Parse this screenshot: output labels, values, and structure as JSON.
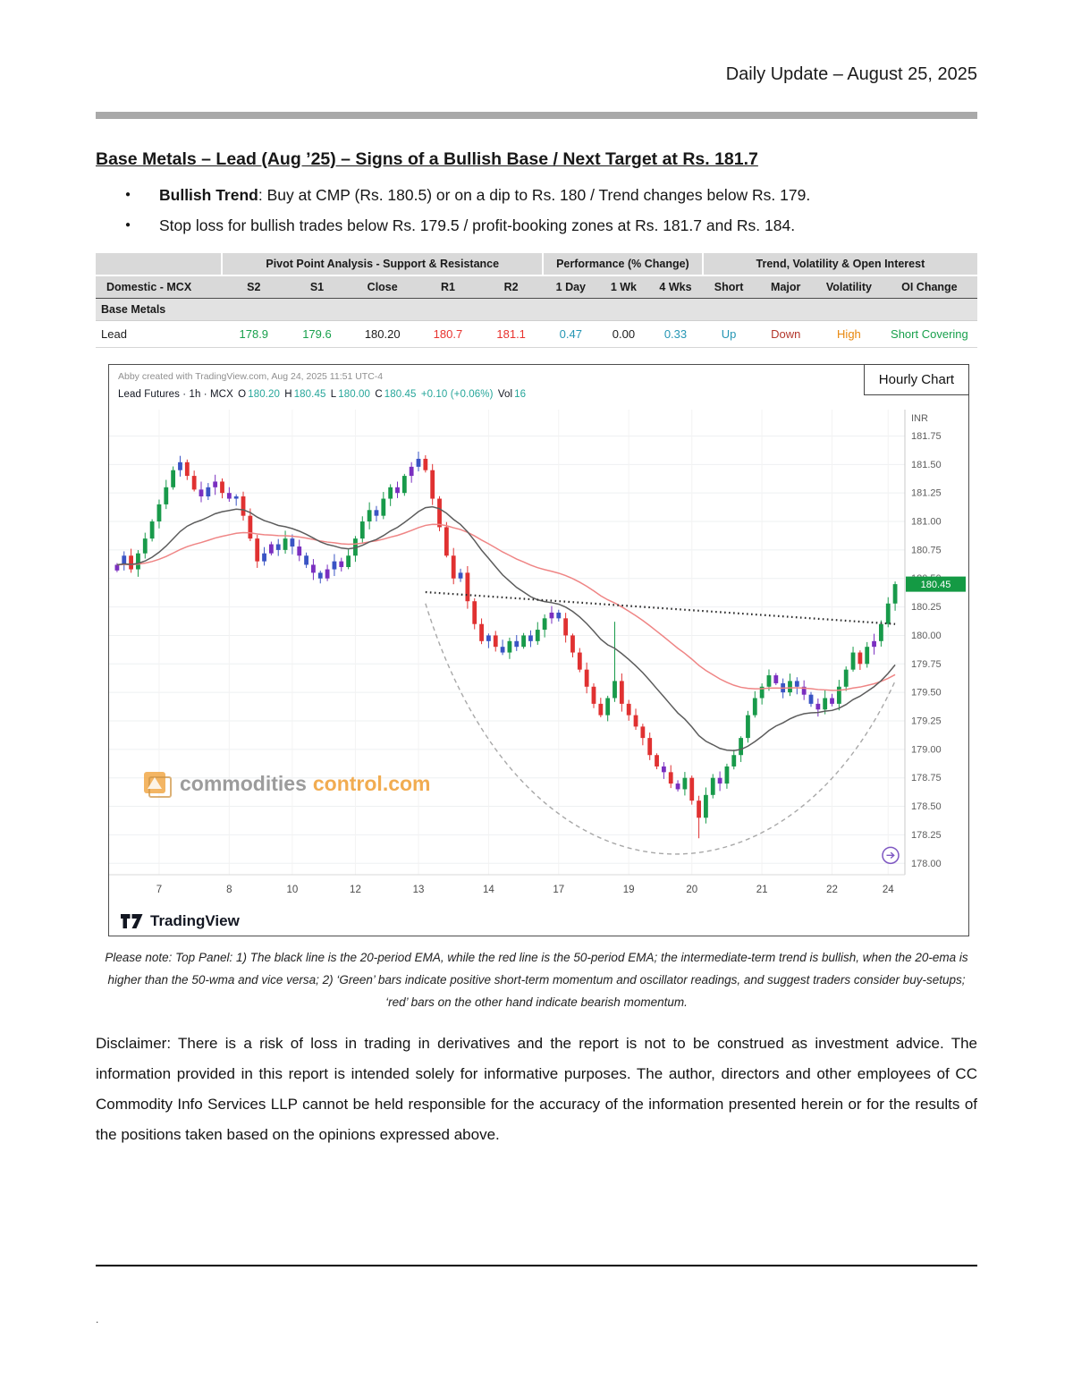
{
  "page": {
    "header_date": "Daily Update – August 25, 2025",
    "title": "Base Metals – Lead (Aug ’25) – Signs of a Bullish Base / Next Target at Rs. 181.7",
    "bullets": [
      {
        "bold": "Bullish Trend",
        "rest": ": Buy at CMP (Rs. 180.5) or on a dip to Rs. 180 / Trend changes below Rs. 179."
      },
      {
        "bold": "",
        "rest": "Stop loss for bullish trades below Rs. 179.5 / profit-booking zones at Rs. 181.7 and Rs. 184."
      }
    ],
    "note": "Please note: Top Panel: 1) The black line is the 20-period EMA, while the red line is the 50-period EMA; the intermediate-term trend is bullish, when the 20-ema is higher than the 50-wma and vice versa; 2) ‘Green’ bars indicate positive short-term momentum and oscillator readings, and suggest traders consider buy-setups; ‘red’ bars on the other hand indicate bearish momentum.",
    "disclaimer": "Disclaimer: There is a risk of loss in trading in derivatives and the report is not to be construed as investment advice. The information provided in this report is intended solely for informative purposes. The author, directors and other employees of CC Commodity Info Services LLP cannot be held responsible for the accuracy of the information presented herein or for the results of the positions taken based on the opinions expressed above.",
    "footer_dot": "."
  },
  "table": {
    "group_headers": [
      "Pivot Point Analysis - Support & Resistance",
      "Performance (% Change)",
      "Trend, Volatility & Open Interest"
    ],
    "columns": [
      "Domestic - MCX",
      "S2",
      "S1",
      "Close",
      "R1",
      "R2",
      "1 Day",
      "1 Wk",
      "4 Wks",
      "Short",
      "Major",
      "Volatility",
      "OI Change"
    ],
    "section": "Base Metals",
    "row": {
      "cells": [
        {
          "text": "Lead",
          "color": "dark"
        },
        {
          "text": "178.9",
          "color": "green"
        },
        {
          "text": "179.6",
          "color": "green"
        },
        {
          "text": "180.20",
          "color": "dark"
        },
        {
          "text": "180.7",
          "color": "red"
        },
        {
          "text": "181.1",
          "color": "red"
        },
        {
          "text": "0.47",
          "color": "teal"
        },
        {
          "text": "0.00",
          "color": "dark"
        },
        {
          "text": "0.33",
          "color": "teal"
        },
        {
          "text": "Up",
          "color": "teal"
        },
        {
          "text": "Down",
          "color": "darkred"
        },
        {
          "text": "High",
          "color": "orange"
        },
        {
          "text": "Short Covering",
          "color": "green"
        }
      ]
    }
  },
  "chart": {
    "attribution": "Abby created with TradingView.com, Aug 24, 2025 11:51 UTC-4",
    "hourly_label": "Hourly Chart",
    "currency": "INR",
    "symbol_parts": [
      {
        "t": "Lead Futures · 1h · MCX ",
        "c": "dark"
      },
      {
        "t": "O",
        "c": "dark"
      },
      {
        "t": "180.20 ",
        "c": "teal"
      },
      {
        "t": "H",
        "c": "dark"
      },
      {
        "t": "180.45 ",
        "c": "teal"
      },
      {
        "t": "L",
        "c": "dark"
      },
      {
        "t": "180.00 ",
        "c": "teal"
      },
      {
        "t": "C",
        "c": "dark"
      },
      {
        "t": "180.45 ",
        "c": "teal"
      },
      {
        "t": "+0.10 (+0.06%) ",
        "c": "teal"
      },
      {
        "t": "Vol",
        "c": "dark"
      },
      {
        "t": "16",
        "c": "teal"
      }
    ],
    "watermark": {
      "gray": "commodities",
      "orange": "control.com"
    },
    "tv_text": "TradingView"
  },
  "chart_data": {
    "type": "candlestick",
    "title": "Lead Futures · 1h · MCX",
    "ohlc_display": {
      "open": "180.20",
      "high": "180.45",
      "low": "180.00",
      "close": "180.45",
      "change": "+0.10 (+0.06%)",
      "volume": "16"
    },
    "currency": "INR",
    "last_price": 180.45,
    "ylim": [
      177.9,
      181.95
    ],
    "y_tick_min": 178.0,
    "y_tick_max": 181.75,
    "y_tick_step": 0.25,
    "x_labels": [
      {
        "label": "7",
        "i": 6
      },
      {
        "label": "8",
        "i": 16
      },
      {
        "label": "10",
        "i": 25
      },
      {
        "label": "12",
        "i": 34
      },
      {
        "label": "13",
        "i": 43
      },
      {
        "label": "14",
        "i": 53
      },
      {
        "label": "17",
        "i": 63
      },
      {
        "label": "19",
        "i": 73
      },
      {
        "label": "20",
        "i": 82
      },
      {
        "label": "21",
        "i": 92
      },
      {
        "label": "22",
        "i": 102
      },
      {
        "label": "24",
        "i": 110
      }
    ],
    "closes": [
      180.62,
      180.7,
      180.58,
      180.72,
      180.85,
      181.0,
      181.15,
      181.3,
      181.45,
      181.52,
      181.4,
      181.28,
      181.22,
      181.3,
      181.35,
      181.25,
      181.2,
      181.22,
      181.05,
      180.85,
      180.65,
      180.72,
      180.8,
      180.75,
      180.85,
      180.78,
      180.7,
      180.62,
      180.55,
      180.5,
      180.58,
      180.65,
      180.6,
      180.7,
      180.85,
      181.0,
      181.1,
      181.05,
      181.2,
      181.3,
      181.25,
      181.4,
      181.48,
      181.55,
      181.45,
      181.2,
      180.95,
      180.7,
      180.5,
      180.55,
      180.3,
      180.1,
      179.95,
      180.0,
      179.9,
      179.85,
      179.95,
      179.9,
      180.0,
      179.95,
      180.05,
      180.15,
      180.2,
      180.15,
      180.0,
      179.85,
      179.7,
      179.55,
      179.4,
      179.3,
      179.45,
      179.6,
      179.4,
      179.3,
      179.2,
      179.1,
      178.95,
      178.85,
      178.8,
      178.7,
      178.65,
      178.75,
      178.55,
      178.4,
      178.6,
      178.75,
      178.7,
      178.85,
      178.95,
      179.1,
      179.3,
      179.45,
      179.55,
      179.65,
      179.58,
      179.5,
      179.6,
      179.55,
      179.48,
      179.4,
      179.35,
      179.45,
      179.4,
      179.55,
      179.7,
      179.85,
      179.75,
      179.9,
      179.95,
      180.1,
      180.28,
      180.45
    ],
    "special_wicks": {
      "71": {
        "high": 180.12
      },
      "83": {
        "low": 178.22
      }
    },
    "overlays": [
      {
        "name": "EMA-20",
        "style": "solid gray-black line"
      },
      {
        "name": "EMA-50",
        "style": "solid light-red line"
      },
      {
        "name": "neckline",
        "style": "dotted black line"
      },
      {
        "name": "rounding-base",
        "style": "dashed gray arc"
      }
    ],
    "trendline": {
      "from_idx": 44,
      "from_price": 180.38,
      "to_idx": 111,
      "to_price": 180.1
    },
    "arc": {
      "from_idx": 44,
      "from_price": 180.28,
      "c1_idx": 58,
      "c1_price": 177.5,
      "c2_idx": 95,
      "c2_price": 177.45,
      "to_idx": 111,
      "to_price": 179.6
    }
  },
  "colors": {
    "green": "#18a04c",
    "red": "#e8322e",
    "teal": "#2596b4",
    "dark": "#1d1d1d",
    "darkred": "#b3362b",
    "orange": "#e8860c",
    "chart_teal": "#26a69a",
    "candle_green": "#189a4a",
    "candle_red": "#e03131",
    "candle_blue": "#3a54c4",
    "candle_purple": "#7a2fc0",
    "ema20": "#5c5c5c",
    "ema50": "#ef8585",
    "badge_green": "#149a44",
    "accent_purple": "#7e57c2",
    "watermark_gray": "#8f8f8f",
    "watermark_orange": "#f0a13a"
  }
}
